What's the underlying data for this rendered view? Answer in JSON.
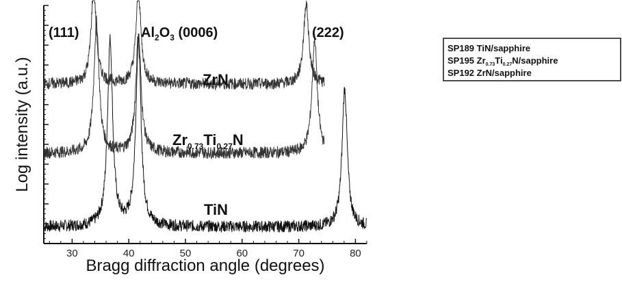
{
  "chart_data": {
    "type": "line",
    "title": "",
    "xlabel": "Bragg diffraction angle (degrees)",
    "ylabel": "Log intensity (a.u.)",
    "xlim": [
      25,
      82
    ],
    "xticks": [
      30,
      40,
      50,
      60,
      70,
      80
    ],
    "log_y": true,
    "grid": false,
    "legend_position": "right",
    "legend": [
      {
        "main": "SP189 TiN/sapphire",
        "parts": [
          "SP189 TiN/sapphire"
        ]
      },
      {
        "main": "SP195 Zr0.73Ti0.27N/sapphire",
        "parts": [
          "SP195 Zr",
          "0.73",
          "Ti",
          "0.27",
          "N/sapphire"
        ]
      },
      {
        "main": "SP192 ZrN/sapphire",
        "parts": [
          "SP192 ZrN/sapphire"
        ]
      }
    ],
    "annotations": [
      {
        "id": "peak-111",
        "text": "(111)"
      },
      {
        "id": "substrate-peak",
        "text": "Al2O3 (0006)",
        "parts": [
          "Al",
          "2",
          "O",
          "3",
          " (0006)"
        ]
      },
      {
        "id": "peak-222",
        "text": "(222)"
      }
    ],
    "series_labels": [
      {
        "id": "zrn",
        "text": "ZrN",
        "parts": [
          "ZrN"
        ]
      },
      {
        "id": "zrtin",
        "text": "Zr0.73Ti0.27N",
        "parts": [
          "Zr",
          "0.73",
          "Ti",
          "0.27",
          "N"
        ]
      },
      {
        "id": "tin",
        "text": "TiN",
        "parts": [
          "TiN"
        ]
      }
    ],
    "series": [
      {
        "name": "SP189 TiN/sapphire",
        "baseline": 0.06,
        "x_range": [
          25,
          82
        ],
        "peaks": [
          {
            "x": 36.7,
            "height": 0.78
          },
          {
            "x": 41.7,
            "height": 0.78
          },
          {
            "x": 78.1,
            "height": 0.58
          }
        ]
      },
      {
        "name": "SP195 Zr0.73Ti0.27N/sapphire",
        "baseline": 0.37,
        "x_range": [
          25,
          74.5
        ],
        "peaks": [
          {
            "x": 34.3,
            "height": 0.55
          },
          {
            "x": 41.7,
            "height": 0.5
          },
          {
            "x": 72.8,
            "height": 0.48
          }
        ]
      },
      {
        "name": "SP192 ZrN/sapphire",
        "baseline": 0.66,
        "x_range": [
          25,
          74.5
        ],
        "peaks": [
          {
            "x": 33.8,
            "height": 0.4
          },
          {
            "x": 41.7,
            "height": 0.38
          },
          {
            "x": 71.3,
            "height": 0.34
          }
        ]
      }
    ]
  }
}
